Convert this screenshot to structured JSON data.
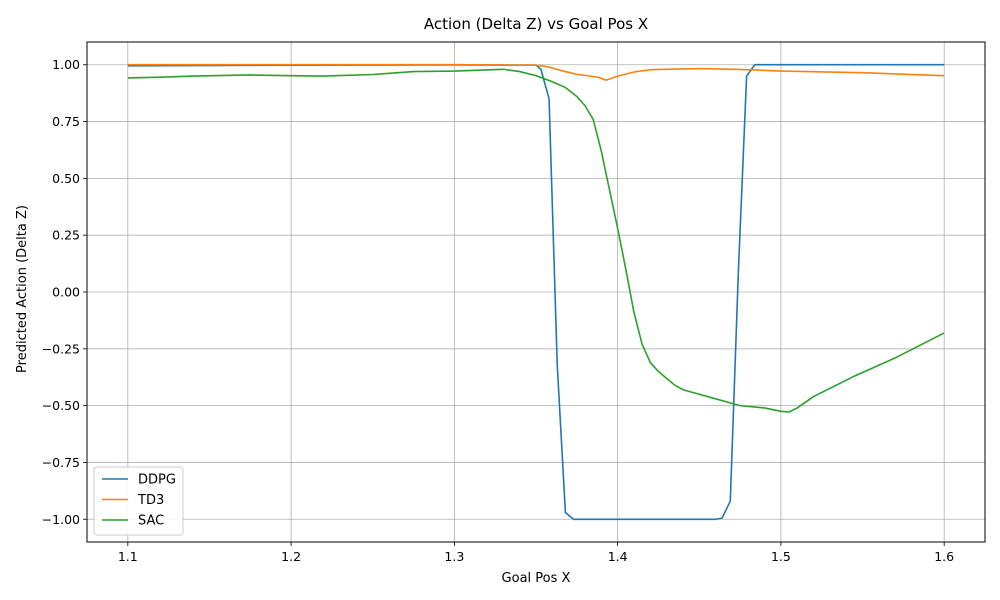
{
  "chart_data": {
    "type": "line",
    "title": "Action (Delta Z) vs Goal Pos X",
    "xlabel": "Goal Pos X",
    "ylabel": "Predicted Action (Delta Z)",
    "xlim": [
      1.075,
      1.625
    ],
    "ylim": [
      -1.1,
      1.1
    ],
    "xticks": [
      "1.1",
      "1.2",
      "1.3",
      "1.4",
      "1.5",
      "1.6"
    ],
    "yticks": [
      "1.00",
      "0.75",
      "0.50",
      "0.25",
      "0.00",
      "−0.25",
      "−0.50",
      "−0.75",
      "−1.00"
    ],
    "grid": true,
    "legend_position": "lower-left",
    "series": [
      {
        "name": "DDPG",
        "color": "#1f77b4",
        "points": [
          [
            1.1,
            0.995
          ],
          [
            1.2,
            0.998
          ],
          [
            1.3,
            0.999
          ],
          [
            1.35,
            0.998
          ],
          [
            1.353,
            0.98
          ],
          [
            1.358,
            0.85
          ],
          [
            1.363,
            -0.32
          ],
          [
            1.368,
            -0.97
          ],
          [
            1.373,
            -1.0
          ],
          [
            1.46,
            -1.0
          ],
          [
            1.464,
            -0.995
          ],
          [
            1.469,
            -0.92
          ],
          [
            1.474,
            0.1
          ],
          [
            1.479,
            0.95
          ],
          [
            1.484,
            1.0
          ],
          [
            1.6,
            1.0
          ]
        ]
      },
      {
        "name": "TD3",
        "color": "#ff7f0e",
        "points": [
          [
            1.1,
            1.0
          ],
          [
            1.2,
            1.0
          ],
          [
            1.3,
            1.0
          ],
          [
            1.35,
            0.998
          ],
          [
            1.358,
            0.99
          ],
          [
            1.365,
            0.975
          ],
          [
            1.375,
            0.958
          ],
          [
            1.388,
            0.945
          ],
          [
            1.393,
            0.932
          ],
          [
            1.4,
            0.95
          ],
          [
            1.41,
            0.968
          ],
          [
            1.42,
            0.978
          ],
          [
            1.45,
            0.983
          ],
          [
            1.48,
            0.978
          ],
          [
            1.5,
            0.972
          ],
          [
            1.55,
            0.965
          ],
          [
            1.6,
            0.952
          ]
        ]
      },
      {
        "name": "SAC",
        "color": "#2ca02c",
        "points": [
          [
            1.1,
            0.942
          ],
          [
            1.12,
            0.945
          ],
          [
            1.14,
            0.95
          ],
          [
            1.175,
            0.955
          ],
          [
            1.2,
            0.952
          ],
          [
            1.22,
            0.95
          ],
          [
            1.25,
            0.957
          ],
          [
            1.275,
            0.97
          ],
          [
            1.3,
            0.972
          ],
          [
            1.33,
            0.98
          ],
          [
            1.34,
            0.97
          ],
          [
            1.35,
            0.952
          ],
          [
            1.36,
            0.925
          ],
          [
            1.368,
            0.9
          ],
          [
            1.375,
            0.86
          ],
          [
            1.38,
            0.82
          ],
          [
            1.385,
            0.76
          ],
          [
            1.39,
            0.62
          ],
          [
            1.395,
            0.45
          ],
          [
            1.4,
            0.28
          ],
          [
            1.405,
            0.1
          ],
          [
            1.41,
            -0.09
          ],
          [
            1.415,
            -0.23
          ],
          [
            1.42,
            -0.31
          ],
          [
            1.425,
            -0.35
          ],
          [
            1.43,
            -0.38
          ],
          [
            1.435,
            -0.41
          ],
          [
            1.44,
            -0.43
          ],
          [
            1.445,
            -0.44
          ],
          [
            1.46,
            -0.47
          ],
          [
            1.47,
            -0.49
          ],
          [
            1.475,
            -0.5
          ],
          [
            1.49,
            -0.51
          ],
          [
            1.5,
            -0.525
          ],
          [
            1.505,
            -0.528
          ],
          [
            1.51,
            -0.51
          ],
          [
            1.52,
            -0.46
          ],
          [
            1.545,
            -0.37
          ],
          [
            1.57,
            -0.29
          ],
          [
            1.6,
            -0.18
          ]
        ]
      }
    ]
  }
}
